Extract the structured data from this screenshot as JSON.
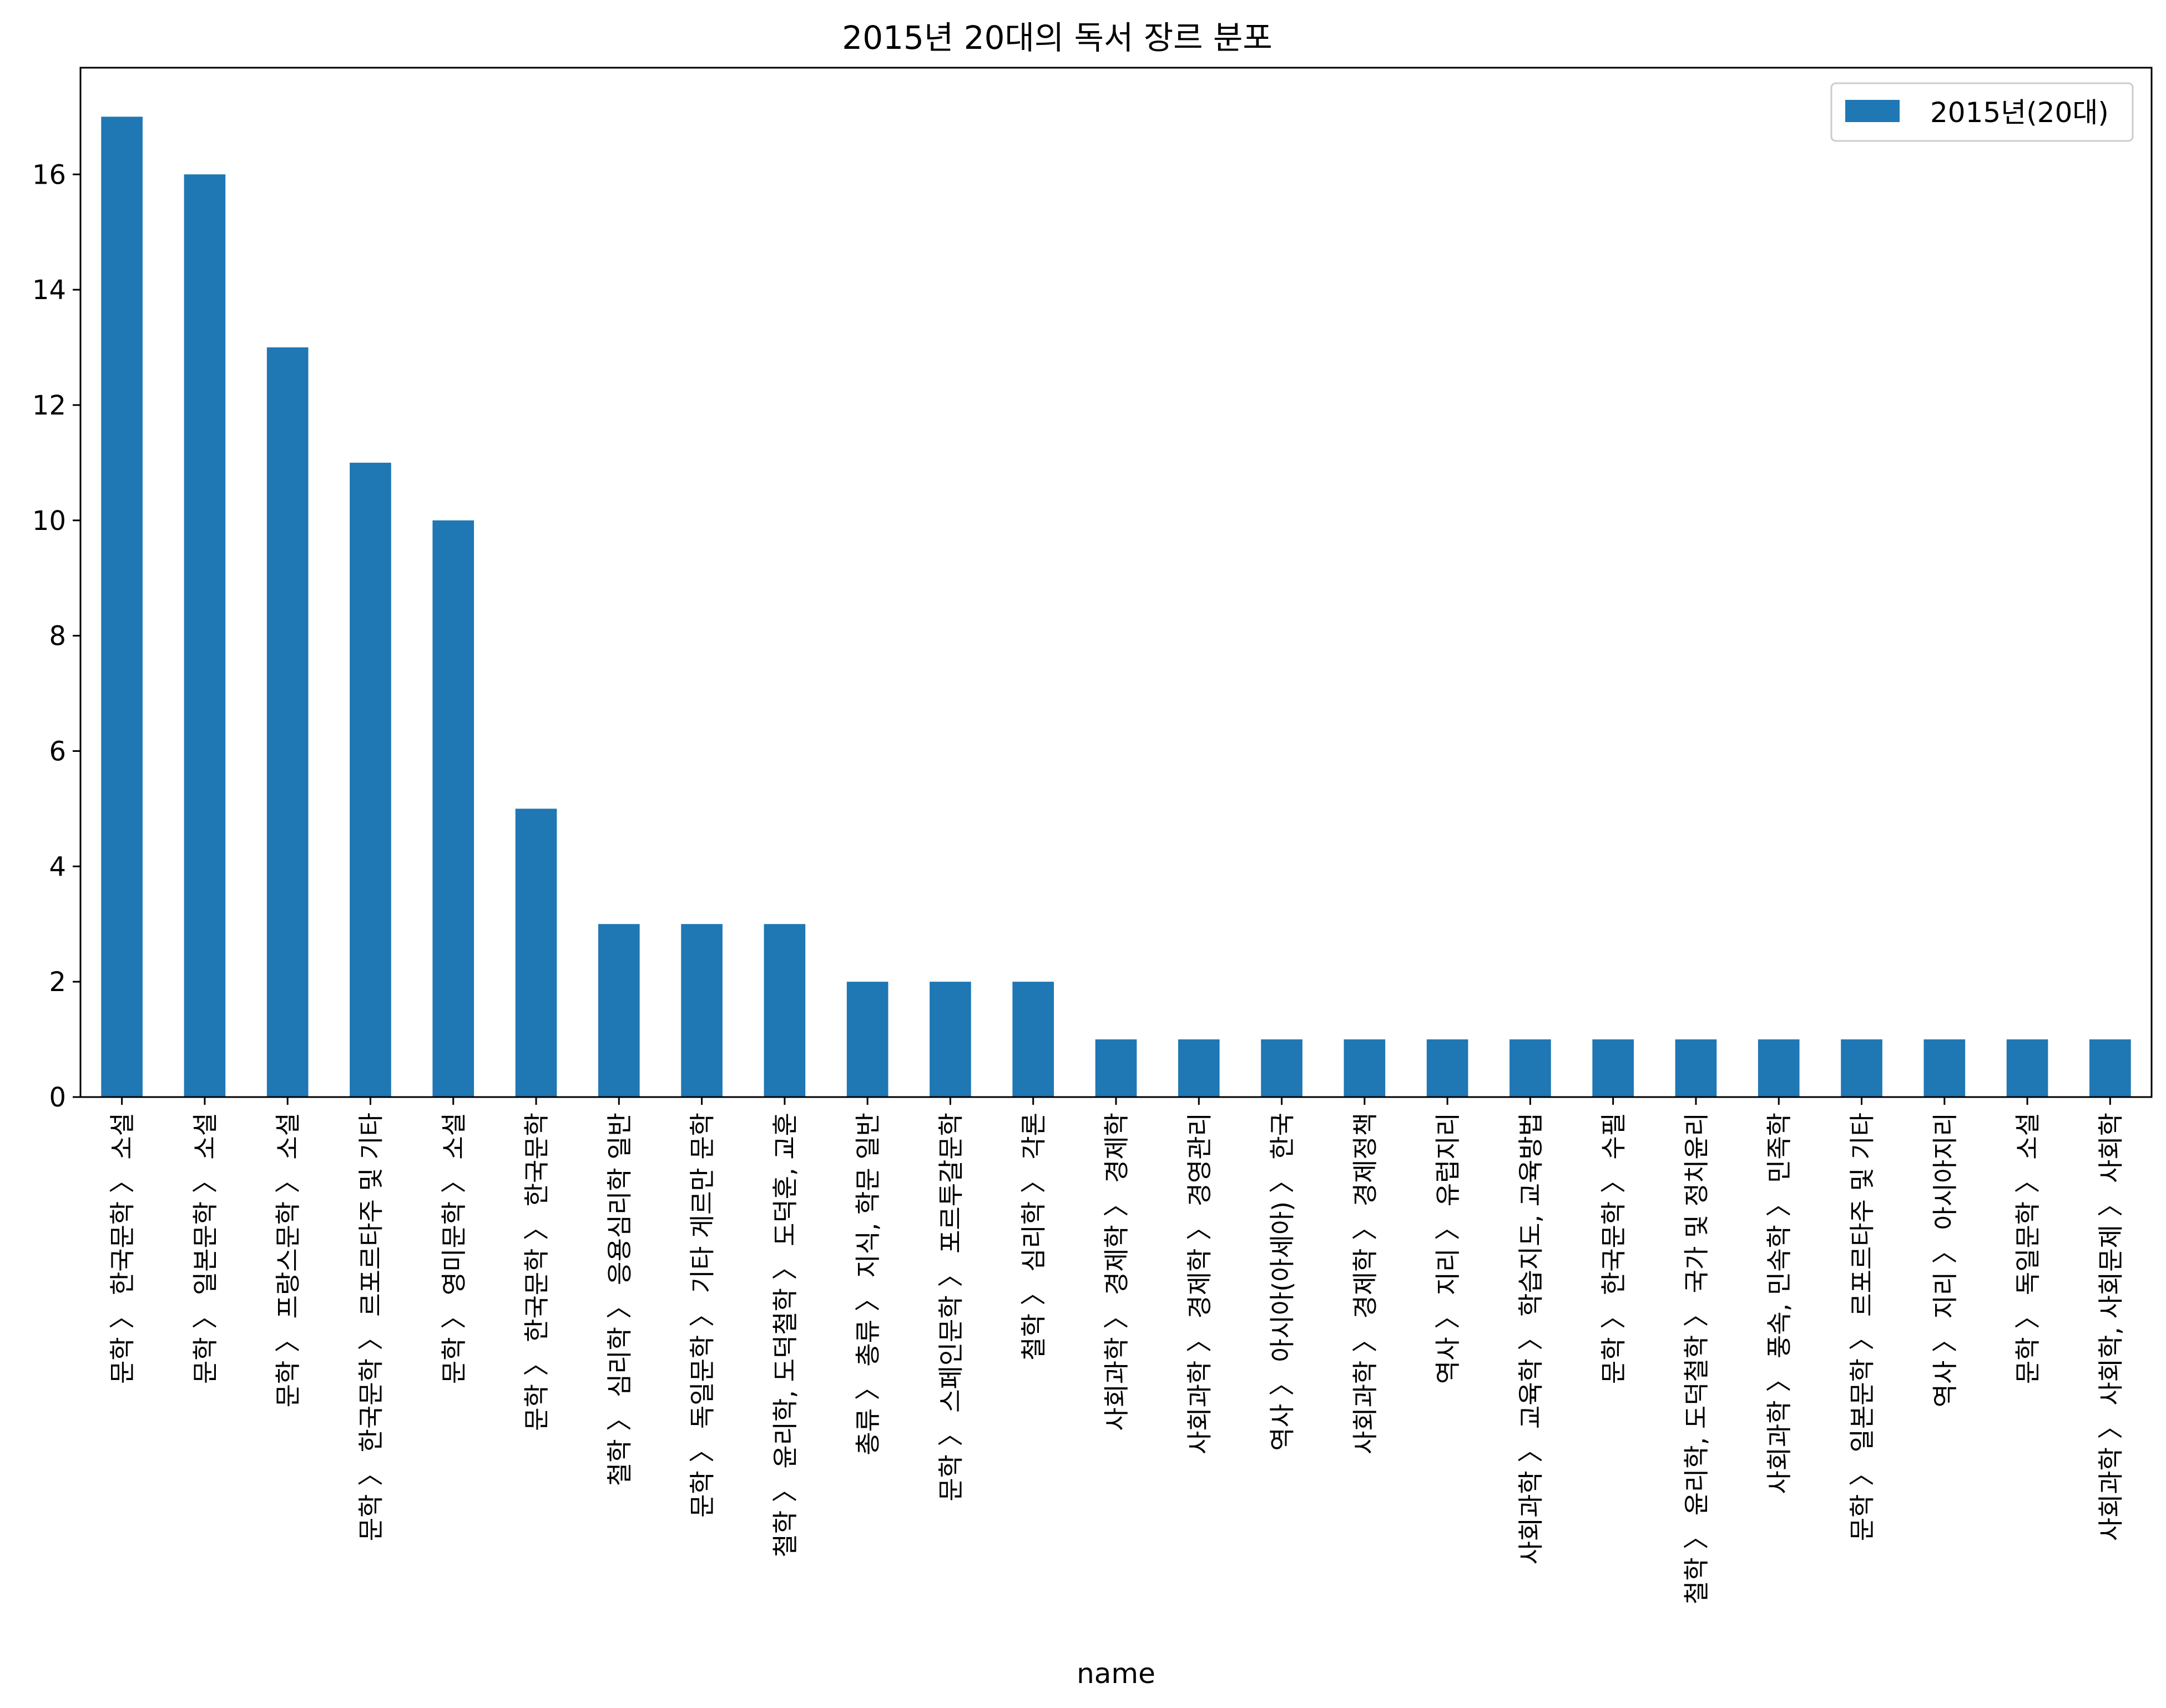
{
  "chart_data": {
    "type": "bar",
    "title": "2015년 20대의 독서 장르 분포",
    "xlabel": "name",
    "ylabel": "",
    "ylim": [
      0,
      17.85
    ],
    "yticks": [
      0,
      2,
      4,
      6,
      8,
      10,
      12,
      14,
      16
    ],
    "grid": false,
    "legend_position": "top-right",
    "categories": [
      "문학 〉 한국문학 〉 소설",
      "문학 〉 일본문학 〉 소설",
      "문학 〉 프랑스문학 〉 소설",
      "문학 〉 한국문학 〉 르포르타주 및 기타",
      "문학 〉 영미문학 〉 소설",
      "문학 〉 한국문학 〉 한국문학",
      "철학 〉 심리학 〉 응용심리학 일반",
      "문학 〉 독일문학 〉 기타 게르만 문학",
      "철학 〉 윤리학, 도덕철학 〉 도덕훈, 교훈",
      "총류 〉 총류 〉 지식, 학문 일반",
      "문학 〉 스페인문학 〉 포르투갈문학",
      "철학 〉 심리학 〉 각론",
      "사회과학 〉 경제학 〉 경제학",
      "사회과학 〉 경제학 〉 경영관리",
      "역사 〉 아시아(아세아) 〉 한국",
      "사회과학 〉 경제학 〉 경제정책",
      "역사 〉 지리 〉 유럽지리",
      "사회과학 〉 교육학 〉 학습지도, 교육방법",
      "문학 〉 한국문학 〉 수필",
      "철학 〉 윤리학, 도덕철학 〉 국가 및 정치윤리",
      "사회과학 〉 풍속, 민속학 〉 민족학",
      "문학 〉 일본문학 〉 르포르타주 및 기타",
      "역사 〉 지리 〉 아시아지리",
      "문학 〉 독일문학 〉 소설",
      "사회과학 〉 사회학, 사회문제 〉 사회학"
    ],
    "series": [
      {
        "name": "2015년(20대)",
        "color": "#1f77b4",
        "values": [
          17,
          16,
          13,
          11,
          10,
          5,
          3,
          3,
          3,
          2,
          2,
          2,
          1,
          1,
          1,
          1,
          1,
          1,
          1,
          1,
          1,
          1,
          1,
          1,
          1
        ]
      }
    ]
  }
}
